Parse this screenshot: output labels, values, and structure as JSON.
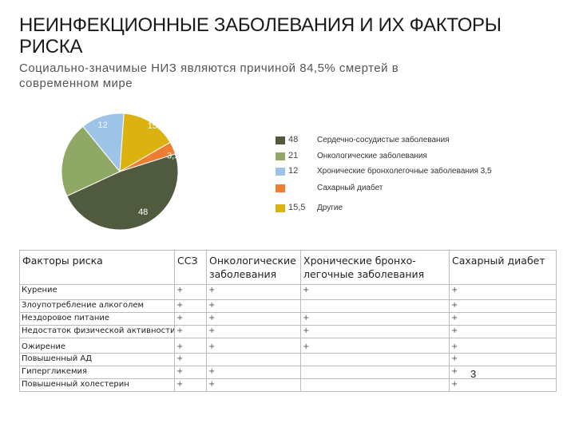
{
  "slide": {
    "title": "НЕИНФЕКЦИОННЫЕ ЗАБОЛЕВАНИЯ И ИХ ФАКТОРЫ РИСКА",
    "subtitle": "Социально-значимые НИЗ являются причиной 84,5% смертей в современном мире",
    "page_number": "3"
  },
  "chart_data": {
    "type": "pie",
    "labels": [
      "Сердечно-сосудистые заболевания",
      "Онкологические заболевания",
      "Хронические бронхолегочные заболевания",
      "Сахарный диабет",
      "Другие"
    ],
    "values": [
      48,
      21,
      12,
      3.5,
      15.5
    ],
    "value_labels": [
      "48",
      "21",
      "12",
      "3,5",
      "15,5"
    ],
    "colors": [
      "#4f5a3e",
      "#8fa866",
      "#9dc3e6",
      "#ed7d31",
      "#dbb20f"
    ],
    "legend": [
      {
        "value": "48",
        "label": "Сердечно-сосудистые заболевания",
        "color": "#4f5a3e"
      },
      {
        "value": "21",
        "label": "Онкологические заболевания",
        "color": "#8fa866"
      },
      {
        "value": "12",
        "label": "Хронические бронхолегочные заболевания  3,5",
        "color": "#9dc3e6"
      },
      {
        "value": "",
        "label": "Сахарный диабет",
        "color": "#ed7d31"
      },
      {
        "value": "15,5",
        "label": "Другие",
        "color": "#dbb20f"
      }
    ]
  },
  "risk_table": {
    "headers": [
      "Факторы риска",
      "ССЗ",
      "Онкологические заболевания",
      "Хронические бронхо-легочные заболевания",
      "Сахарный диабет"
    ],
    "rows": [
      {
        "factor": "Курение",
        "marks": [
          "+",
          "+",
          "+",
          "+"
        ]
      },
      {
        "factor": "Злоупотребление алкоголем",
        "marks": [
          "+",
          "+",
          "",
          "+"
        ]
      },
      {
        "factor": "Нездоровое питание",
        "marks": [
          "+",
          "+",
          "+",
          "+"
        ]
      },
      {
        "factor": "Недостаток физической активности",
        "marks": [
          "+",
          "+",
          "+",
          "+"
        ]
      },
      {
        "factor": "Ожирение",
        "marks": [
          "+",
          "+",
          "+",
          "+"
        ]
      },
      {
        "factor": "Повышенный АД",
        "marks": [
          "+",
          "",
          "",
          "+"
        ]
      },
      {
        "factor": "Гипергликемия",
        "marks": [
          "+",
          "+",
          "",
          "+"
        ]
      },
      {
        "factor": "Повышенный холестерин",
        "marks": [
          "+",
          "+",
          "",
          "+"
        ]
      }
    ]
  }
}
